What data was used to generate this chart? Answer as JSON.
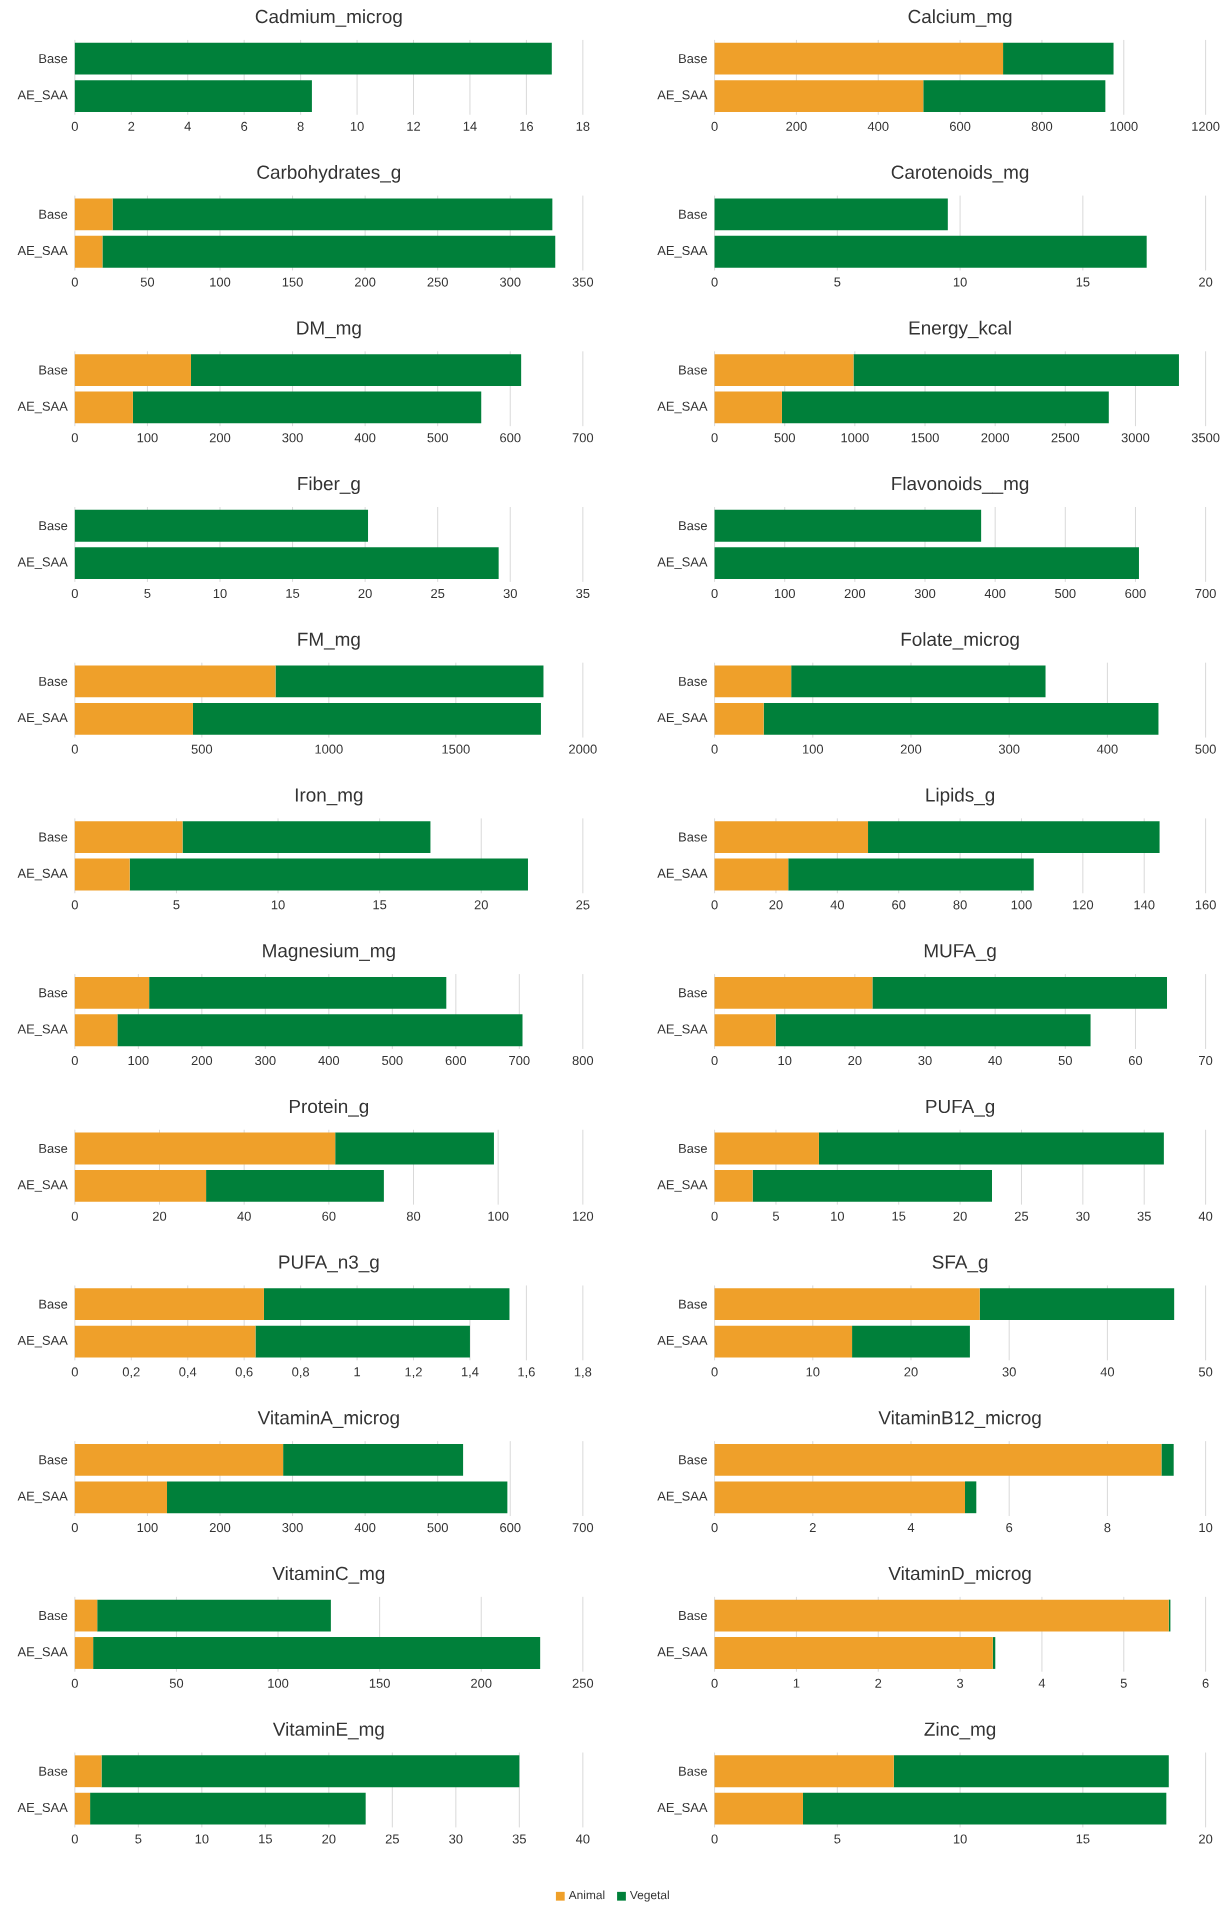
{
  "chart_data": [
    {
      "type": "bar",
      "orientation": "horizontal",
      "stacked": true,
      "title": "Cadmium_microg",
      "categories": [
        "Base",
        "AE_SAA"
      ],
      "series": [
        {
          "color": "#efa02a",
          "values": [
            0,
            0
          ]
        },
        {
          "color": "#00803a",
          "values": [
            16.9,
            8.4
          ]
        }
      ],
      "xlim": [
        0,
        18
      ],
      "xticks": [
        0,
        2,
        4,
        6,
        8,
        10,
        12,
        14,
        16,
        18
      ],
      "grid": "x"
    },
    {
      "type": "bar",
      "orientation": "horizontal",
      "stacked": true,
      "title": "Calcium_mg",
      "categories": [
        "Base",
        "AE_SAA"
      ],
      "series": [
        {
          "color": "#efa02a",
          "values": [
            705,
            510
          ]
        },
        {
          "color": "#00803a",
          "values": [
            270,
            445
          ]
        }
      ],
      "xlim": [
        0,
        1200
      ],
      "xticks": [
        0,
        200,
        400,
        600,
        800,
        1000,
        1200
      ],
      "grid": "x"
    },
    {
      "type": "bar",
      "orientation": "horizontal",
      "stacked": true,
      "title": "Carbohydrates_g",
      "categories": [
        "Base",
        "AE_SAA"
      ],
      "series": [
        {
          "color": "#efa02a",
          "values": [
            26,
            19
          ]
        },
        {
          "color": "#00803a",
          "values": [
            303,
            312
          ]
        }
      ],
      "xlim": [
        0,
        350
      ],
      "xticks": [
        0,
        50,
        100,
        150,
        200,
        250,
        300,
        350
      ],
      "grid": "x"
    },
    {
      "type": "bar",
      "orientation": "horizontal",
      "stacked": true,
      "title": "Carotenoids_mg",
      "categories": [
        "Base",
        "AE_SAA"
      ],
      "series": [
        {
          "color": "#efa02a",
          "values": [
            0,
            0
          ]
        },
        {
          "color": "#00803a",
          "values": [
            9.5,
            17.6
          ]
        }
      ],
      "xlim": [
        0,
        20
      ],
      "xticks": [
        0,
        5,
        10,
        15,
        20
      ],
      "grid": "x"
    },
    {
      "type": "bar",
      "orientation": "horizontal",
      "stacked": true,
      "title": "DM_mg",
      "categories": [
        "Base",
        "AE_SAA"
      ],
      "series": [
        {
          "color": "#efa02a",
          "values": [
            160,
            80
          ]
        },
        {
          "color": "#00803a",
          "values": [
            455,
            480
          ]
        }
      ],
      "xlim": [
        0,
        700
      ],
      "xticks": [
        0,
        100,
        200,
        300,
        400,
        500,
        600,
        700
      ],
      "grid": "x"
    },
    {
      "type": "bar",
      "orientation": "horizontal",
      "stacked": true,
      "title": "Energy_kcal",
      "categories": [
        "Base",
        "AE_SAA"
      ],
      "series": [
        {
          "color": "#efa02a",
          "values": [
            990,
            480
          ]
        },
        {
          "color": "#00803a",
          "values": [
            2320,
            2330
          ]
        }
      ],
      "xlim": [
        0,
        3500
      ],
      "xticks": [
        0,
        500,
        1000,
        1500,
        2000,
        2500,
        3000,
        3500
      ],
      "grid": "x"
    },
    {
      "type": "bar",
      "orientation": "horizontal",
      "stacked": true,
      "title": "Fiber_g",
      "categories": [
        "Base",
        "AE_SAA"
      ],
      "series": [
        {
          "color": "#efa02a",
          "values": [
            0,
            0
          ]
        },
        {
          "color": "#00803a",
          "values": [
            20.2,
            29.2
          ]
        }
      ],
      "xlim": [
        0,
        35
      ],
      "xticks": [
        0,
        5,
        10,
        15,
        20,
        25,
        30,
        35
      ],
      "grid": "x"
    },
    {
      "type": "bar",
      "orientation": "horizontal",
      "stacked": true,
      "title": "Flavonoids__mg",
      "categories": [
        "Base",
        "AE_SAA"
      ],
      "series": [
        {
          "color": "#efa02a",
          "values": [
            0,
            0
          ]
        },
        {
          "color": "#00803a",
          "values": [
            380,
            605
          ]
        }
      ],
      "xlim": [
        0,
        700
      ],
      "xticks": [
        0,
        100,
        200,
        300,
        400,
        500,
        600,
        700
      ],
      "grid": "x"
    },
    {
      "type": "bar",
      "orientation": "horizontal",
      "stacked": true,
      "title": "FM_mg",
      "categories": [
        "Base",
        "AE_SAA"
      ],
      "series": [
        {
          "color": "#efa02a",
          "values": [
            790,
            465
          ]
        },
        {
          "color": "#00803a",
          "values": [
            1055,
            1370
          ]
        }
      ],
      "xlim": [
        0,
        2000
      ],
      "xticks": [
        0,
        500,
        1000,
        1500,
        2000
      ],
      "grid": "x"
    },
    {
      "type": "bar",
      "orientation": "horizontal",
      "stacked": true,
      "title": "Folate_microg",
      "categories": [
        "Base",
        "AE_SAA"
      ],
      "series": [
        {
          "color": "#efa02a",
          "values": [
            78,
            50
          ]
        },
        {
          "color": "#00803a",
          "values": [
            259,
            402
          ]
        }
      ],
      "xlim": [
        0,
        500
      ],
      "xticks": [
        0,
        100,
        200,
        300,
        400,
        500
      ],
      "grid": "x"
    },
    {
      "type": "bar",
      "orientation": "horizontal",
      "stacked": true,
      "title": "Iron_mg",
      "categories": [
        "Base",
        "AE_SAA"
      ],
      "series": [
        {
          "color": "#efa02a",
          "values": [
            5.3,
            2.7
          ]
        },
        {
          "color": "#00803a",
          "values": [
            12.2,
            19.6
          ]
        }
      ],
      "xlim": [
        0,
        25
      ],
      "xticks": [
        0,
        5,
        10,
        15,
        20,
        25
      ],
      "grid": "x"
    },
    {
      "type": "bar",
      "orientation": "horizontal",
      "stacked": true,
      "title": "Lipids_g",
      "categories": [
        "Base",
        "AE_SAA"
      ],
      "series": [
        {
          "color": "#efa02a",
          "values": [
            50,
            24
          ]
        },
        {
          "color": "#00803a",
          "values": [
            95,
            80
          ]
        }
      ],
      "xlim": [
        0,
        160
      ],
      "xticks": [
        0,
        20,
        40,
        60,
        80,
        100,
        120,
        140,
        160
      ],
      "grid": "x"
    },
    {
      "type": "bar",
      "orientation": "horizontal",
      "stacked": true,
      "title": "Magnesium_mg",
      "categories": [
        "Base",
        "AE_SAA"
      ],
      "series": [
        {
          "color": "#efa02a",
          "values": [
            117,
            67
          ]
        },
        {
          "color": "#00803a",
          "values": [
            468,
            638
          ]
        }
      ],
      "xlim": [
        0,
        800
      ],
      "xticks": [
        0,
        100,
        200,
        300,
        400,
        500,
        600,
        700,
        800
      ],
      "grid": "x"
    },
    {
      "type": "bar",
      "orientation": "horizontal",
      "stacked": true,
      "title": "MUFA_g",
      "categories": [
        "Base",
        "AE_SAA"
      ],
      "series": [
        {
          "color": "#efa02a",
          "values": [
            22.5,
            8.7
          ]
        },
        {
          "color": "#00803a",
          "values": [
            42,
            44.9
          ]
        }
      ],
      "xlim": [
        0,
        70
      ],
      "xticks": [
        0,
        10,
        20,
        30,
        40,
        50,
        60,
        70
      ],
      "grid": "x"
    },
    {
      "type": "bar",
      "orientation": "horizontal",
      "stacked": true,
      "title": "Protein_g",
      "categories": [
        "Base",
        "AE_SAA"
      ],
      "series": [
        {
          "color": "#efa02a",
          "values": [
            61.5,
            31
          ]
        },
        {
          "color": "#00803a",
          "values": [
            37.5,
            42
          ]
        }
      ],
      "xlim": [
        0,
        120
      ],
      "xticks": [
        0,
        20,
        40,
        60,
        80,
        100,
        120
      ],
      "grid": "x"
    },
    {
      "type": "bar",
      "orientation": "horizontal",
      "stacked": true,
      "title": "PUFA_g",
      "categories": [
        "Base",
        "AE_SAA"
      ],
      "series": [
        {
          "color": "#efa02a",
          "values": [
            8.5,
            3.1
          ]
        },
        {
          "color": "#00803a",
          "values": [
            28.1,
            19.5
          ]
        }
      ],
      "xlim": [
        0,
        40
      ],
      "xticks": [
        0,
        5,
        10,
        15,
        20,
        25,
        30,
        35,
        40
      ],
      "grid": "x"
    },
    {
      "type": "bar",
      "orientation": "horizontal",
      "stacked": true,
      "title": "PUFA_n3_g",
      "categories": [
        "Base",
        "AE_SAA"
      ],
      "series": [
        {
          "color": "#efa02a",
          "values": [
            0.67,
            0.64
          ]
        },
        {
          "color": "#00803a",
          "values": [
            0.87,
            0.76
          ]
        }
      ],
      "xlim": [
        0,
        1.8
      ],
      "xticks": [
        0,
        {
          "value": 0.2,
          "label": "0,2"
        },
        {
          "value": 0.4,
          "label": "0,4"
        },
        {
          "value": 0.6,
          "label": "0,6"
        },
        {
          "value": 0.8,
          "label": "0,8"
        },
        1,
        {
          "value": 1.2,
          "label": "1,2"
        },
        {
          "value": 1.4,
          "label": "1,4"
        },
        {
          "value": 1.6,
          "label": "1,6"
        },
        {
          "value": 1.8,
          "label": "1,8"
        }
      ],
      "grid": "x"
    },
    {
      "type": "bar",
      "orientation": "horizontal",
      "stacked": true,
      "title": "SFA_g",
      "categories": [
        "Base",
        "AE_SAA"
      ],
      "series": [
        {
          "color": "#efa02a",
          "values": [
            27,
            14
          ]
        },
        {
          "color": "#00803a",
          "values": [
            19.8,
            12
          ]
        }
      ],
      "xlim": [
        0,
        50
      ],
      "xticks": [
        0,
        10,
        20,
        30,
        40,
        50
      ],
      "grid": "x"
    },
    {
      "type": "bar",
      "orientation": "horizontal",
      "stacked": true,
      "title": "VitaminA_microg",
      "categories": [
        "Base",
        "AE_SAA"
      ],
      "series": [
        {
          "color": "#efa02a",
          "values": [
            287,
            127
          ]
        },
        {
          "color": "#00803a",
          "values": [
            248,
            469
          ]
        }
      ],
      "xlim": [
        0,
        700
      ],
      "xticks": [
        0,
        100,
        200,
        300,
        400,
        500,
        600,
        700
      ],
      "grid": "x"
    },
    {
      "type": "bar",
      "orientation": "horizontal",
      "stacked": true,
      "title": "VitaminB12_microg",
      "categories": [
        "Base",
        "AE_SAA"
      ],
      "series": [
        {
          "color": "#efa02a",
          "values": [
            9.1,
            5.1
          ]
        },
        {
          "color": "#00803a",
          "values": [
            0.25,
            0.23
          ]
        }
      ],
      "xlim": [
        0,
        10
      ],
      "xticks": [
        0,
        2,
        4,
        6,
        8,
        10
      ],
      "grid": "x"
    },
    {
      "type": "bar",
      "orientation": "horizontal",
      "stacked": true,
      "title": "VitaminC_mg",
      "categories": [
        "Base",
        "AE_SAA"
      ],
      "series": [
        {
          "color": "#efa02a",
          "values": [
            11,
            9
          ]
        },
        {
          "color": "#00803a",
          "values": [
            115,
            220
          ]
        }
      ],
      "xlim": [
        0,
        250
      ],
      "xticks": [
        0,
        50,
        100,
        150,
        200,
        250
      ],
      "grid": "x"
    },
    {
      "type": "bar",
      "orientation": "horizontal",
      "stacked": true,
      "title": "VitaminD_microg",
      "categories": [
        "Base",
        "AE_SAA"
      ],
      "series": [
        {
          "color": "#efa02a",
          "values": [
            5.55,
            3.4
          ]
        },
        {
          "color": "#00803a",
          "values": [
            0.02,
            0.03
          ]
        }
      ],
      "xlim": [
        0,
        6
      ],
      "xticks": [
        0,
        1,
        2,
        3,
        4,
        5,
        6
      ],
      "grid": "x"
    },
    {
      "type": "bar",
      "orientation": "horizontal",
      "stacked": true,
      "title": "VitaminE_mg",
      "categories": [
        "Base",
        "AE_SAA"
      ],
      "series": [
        {
          "name": "Animal",
          "color": "#efa02a",
          "values": [
            2.1,
            1.2
          ]
        },
        {
          "name": "Vegetal",
          "color": "#00803a",
          "values": [
            32.9,
            21.7
          ]
        }
      ],
      "xlim": [
        0,
        40
      ],
      "xticks": [
        0,
        5,
        10,
        15,
        20,
        25,
        30,
        35,
        40
      ],
      "grid": "x",
      "legend": "bottom"
    },
    {
      "type": "bar",
      "orientation": "horizontal",
      "stacked": true,
      "title": "Zinc_mg",
      "categories": [
        "Base",
        "AE_SAA"
      ],
      "series": [
        {
          "color": "#efa02a",
          "values": [
            7.3,
            3.6
          ]
        },
        {
          "color": "#00803a",
          "values": [
            11.2,
            14.8
          ]
        }
      ],
      "xlim": [
        0,
        20
      ],
      "xticks": [
        0,
        5,
        10,
        15,
        20
      ],
      "grid": "x"
    }
  ]
}
